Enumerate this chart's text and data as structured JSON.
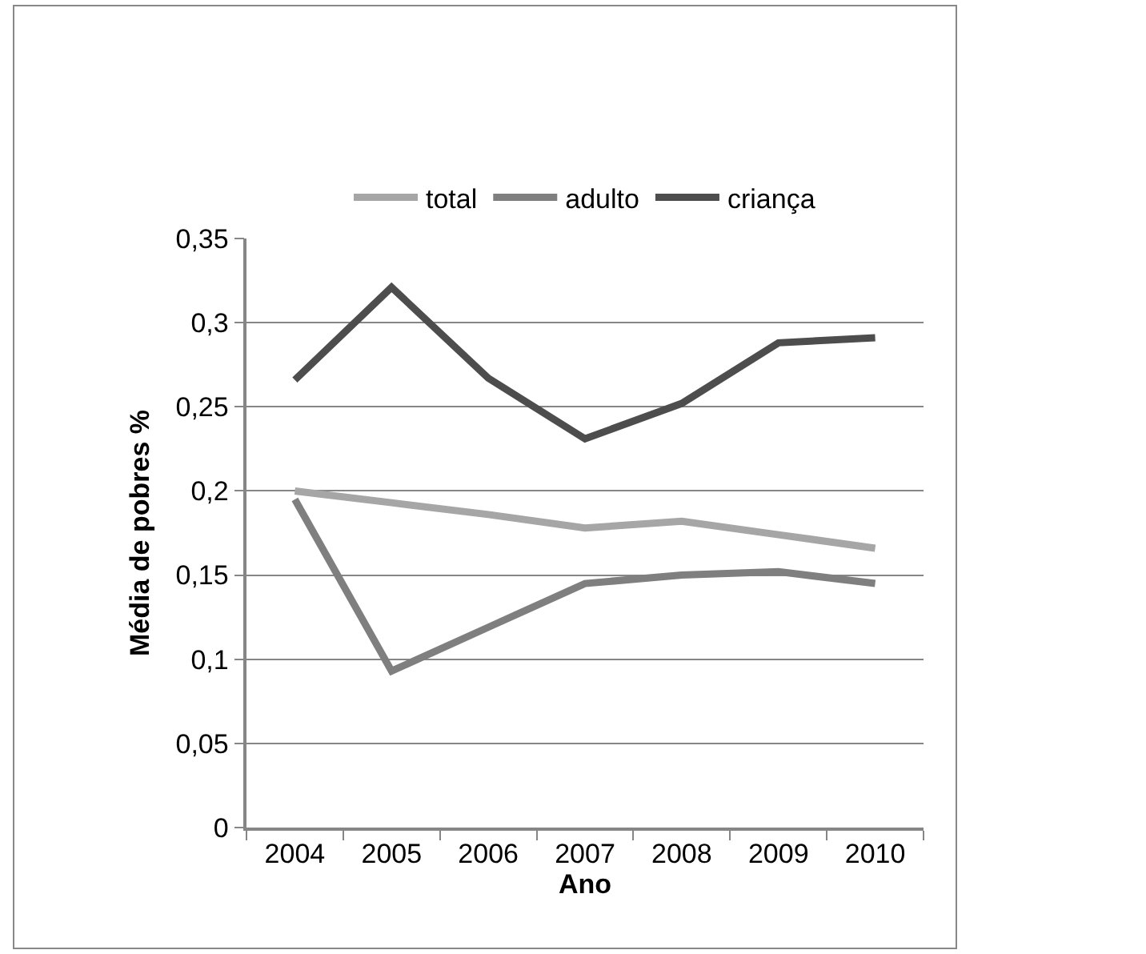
{
  "chart_data": {
    "type": "line",
    "xlabel": "Ano",
    "ylabel": "Média de pobres %",
    "categories": [
      "2004",
      "2005",
      "2006",
      "2007",
      "2008",
      "2009",
      "2010"
    ],
    "series": [
      {
        "name": "total",
        "color": "#a6a6a6",
        "values": [
          0.2,
          0.193,
          0.186,
          0.178,
          0.182,
          0.174,
          0.166
        ]
      },
      {
        "name": "adulto",
        "color": "#7f7f7f",
        "values": [
          0.195,
          0.093,
          0.119,
          0.145,
          0.15,
          0.152,
          0.145
        ]
      },
      {
        "name": "criança",
        "color": "#4d4d4d",
        "values": [
          0.266,
          0.321,
          0.267,
          0.231,
          0.252,
          0.288,
          0.291
        ]
      }
    ],
    "ylim": [
      0,
      0.35
    ],
    "yticks": [
      0,
      {
        "value": 0.05,
        "label": "0,05"
      },
      {
        "value": 0.1,
        "label": "0,1"
      },
      {
        "value": 0.15,
        "label": "0,15"
      },
      {
        "value": 0.2,
        "label": "0,2"
      },
      {
        "value": 0.25,
        "label": "0,25"
      },
      {
        "value": 0.3,
        "label": "0,3"
      },
      {
        "value": 0.35,
        "label": "0,35"
      }
    ],
    "grid": "y",
    "legend": "top",
    "marker": "none",
    "line_style": "solid"
  }
}
